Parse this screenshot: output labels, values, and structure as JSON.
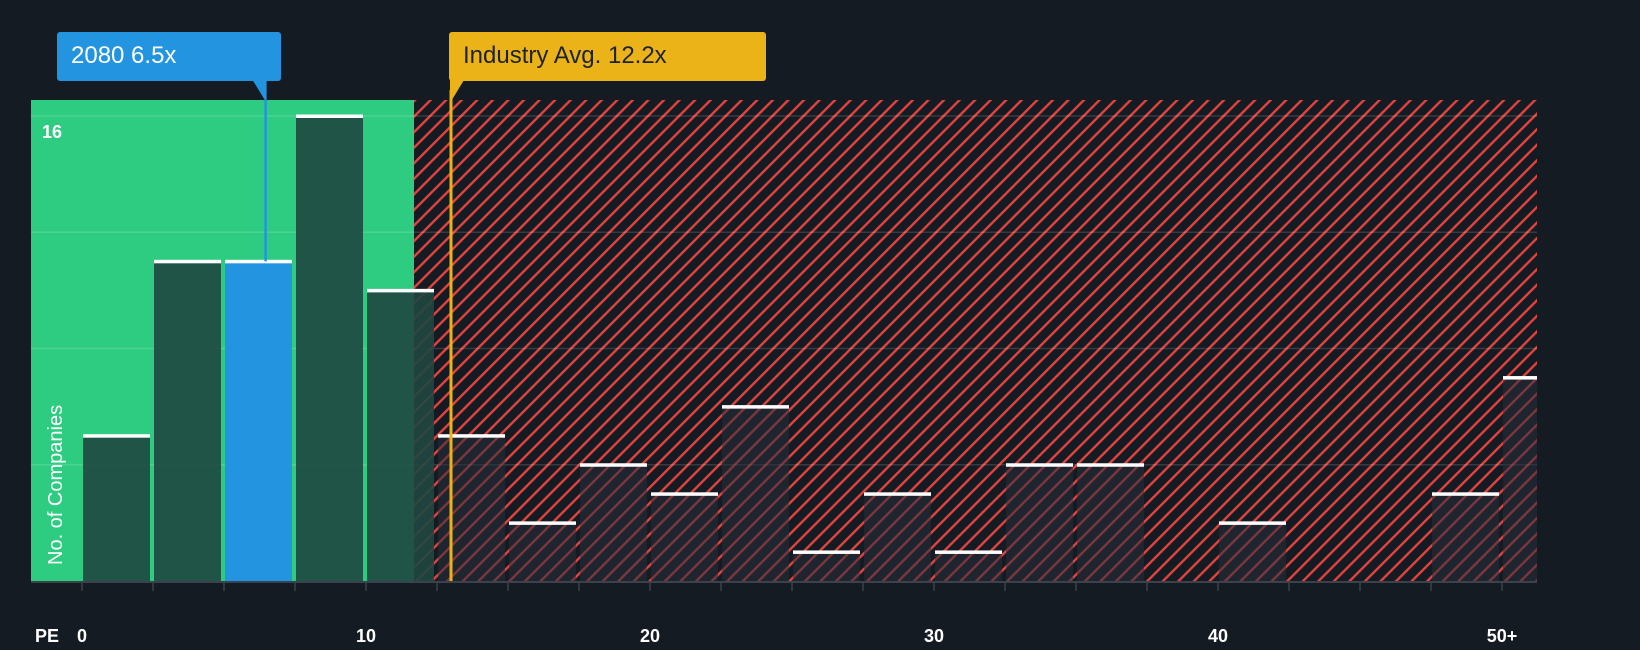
{
  "company_callout": {
    "label": "2080 6.5x",
    "ticker": "2080",
    "value": 6.5,
    "color": "#2394e0"
  },
  "industry_callout": {
    "label": "Industry Avg. 12.2x",
    "value": 12.2,
    "color": "#ecb319"
  },
  "colors": {
    "background": "#151b23",
    "undervalued_zone": "#2ecc80",
    "overvalued_hatch": "#e2433e",
    "bar_dark": "#1f4740",
    "bar_highlight": "#2394e0",
    "bar_cap": "#ffffff"
  },
  "chart_data": {
    "type": "bar",
    "title": "",
    "xlabel": "PE",
    "ylabel": "No. of Companies",
    "x_ticks": [
      "0",
      "10",
      "20",
      "30",
      "40",
      "50+"
    ],
    "x_tick_values": [
      0,
      10,
      20,
      30,
      40,
      50
    ],
    "y_ticks": [
      "16"
    ],
    "ylim": [
      0,
      16
    ],
    "bin_width": 2.5,
    "categories": [
      "0-2.5",
      "2.5-5",
      "5-7.5",
      "7.5-10",
      "10-12.5",
      "12.5-15",
      "15-17.5",
      "17.5-20",
      "20-22.5",
      "22.5-25",
      "25-27.5",
      "27.5-30",
      "30-32.5",
      "32.5-35",
      "35-37.5",
      "37.5-40",
      "40-42.5",
      "42.5-45",
      "45-47.5",
      "47.5-50",
      "50+"
    ],
    "values": [
      5,
      11,
      11,
      16,
      10,
      5,
      2,
      4,
      3,
      6,
      1,
      3,
      1,
      4,
      4,
      0,
      2,
      0,
      0,
      3,
      7
    ],
    "highlight_bin_index": 2,
    "company_pe": 6.5,
    "industry_avg_pe": 12.2,
    "grid": true,
    "gridline_values": [
      4,
      8,
      12,
      16
    ]
  }
}
